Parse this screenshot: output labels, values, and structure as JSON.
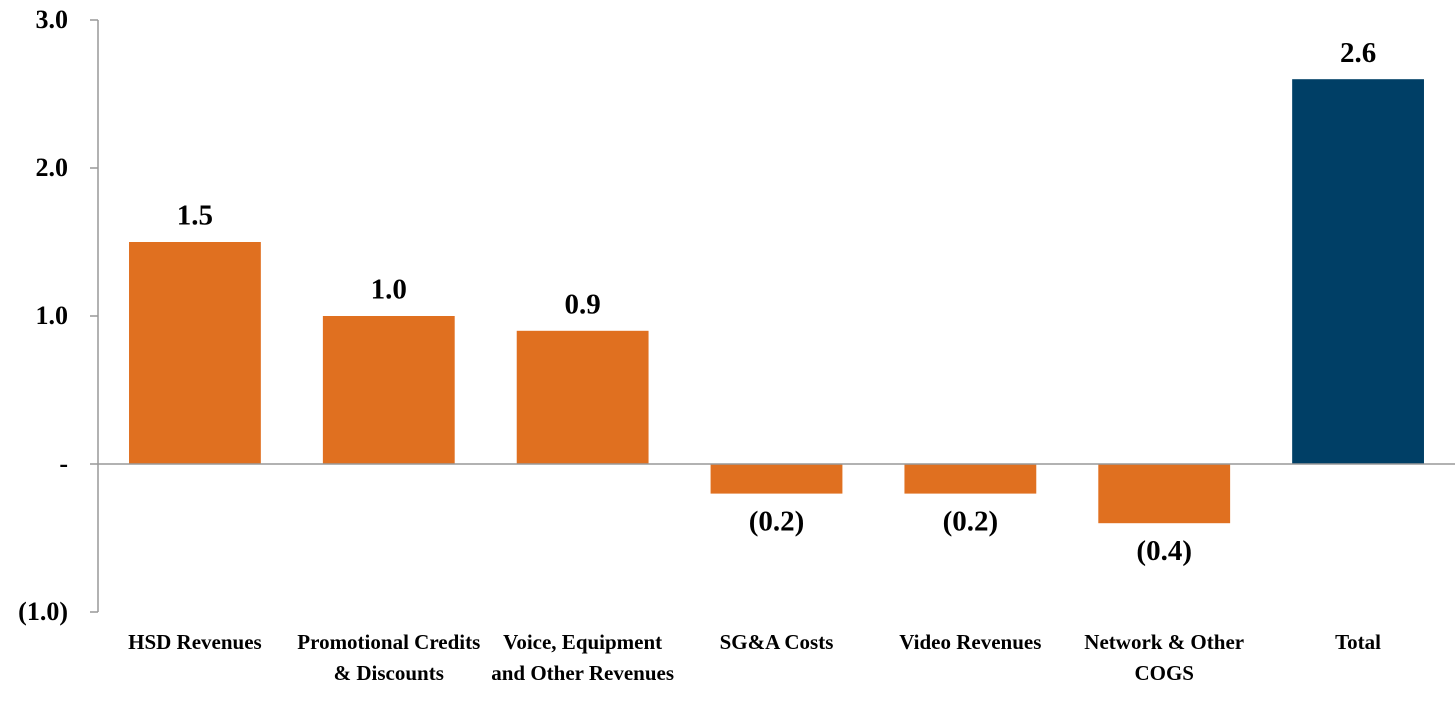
{
  "chart_data": {
    "type": "bar",
    "categories": [
      "HSD Revenues",
      "Promotional Credits & Discounts",
      "Voice, Equipment and Other Revenues",
      "SG&A Costs",
      "Video Revenues",
      "Network & Other COGS",
      "Total"
    ],
    "values": [
      1.5,
      1.0,
      0.9,
      -0.2,
      -0.2,
      -0.4,
      2.6
    ],
    "value_labels": [
      "1.5",
      "1.0",
      "0.9",
      "(0.2)",
      "(0.2)",
      "(0.4)",
      "2.6"
    ],
    "colors": [
      "#e07020",
      "#e07020",
      "#e07020",
      "#e07020",
      "#e07020",
      "#e07020",
      "#003f66"
    ],
    "ylim": [
      -1,
      3
    ],
    "yticks": [
      {
        "value": -1,
        "label": "(1.0)"
      },
      {
        "value": 0,
        "label": "-"
      },
      {
        "value": 1,
        "label": "1.0"
      },
      {
        "value": 2,
        "label": "2.0"
      },
      {
        "value": 3,
        "label": "3.0"
      }
    ],
    "grid": false
  }
}
